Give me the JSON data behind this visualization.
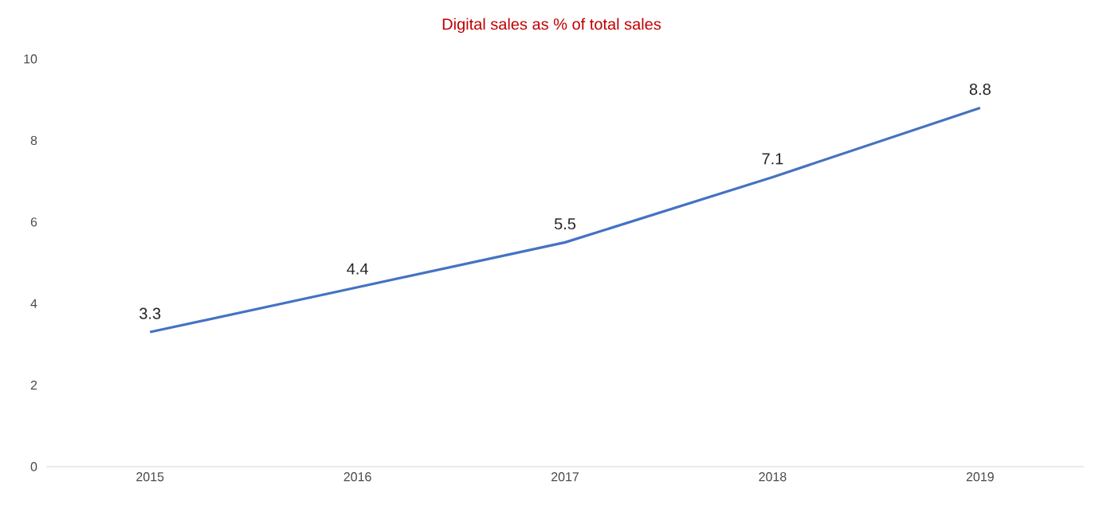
{
  "chart_data": {
    "type": "line",
    "title": "Digital sales as % of total sales",
    "categories": [
      "2015",
      "2016",
      "2017",
      "2018",
      "2019"
    ],
    "series": [
      {
        "color": "#4472c4",
        "values": [
          3.3,
          4.4,
          5.5,
          7.1,
          8.8
        ]
      }
    ],
    "ylim": [
      0,
      10
    ],
    "yticks": [
      0,
      2,
      4,
      6,
      8,
      10
    ],
    "data_labels": true
  }
}
